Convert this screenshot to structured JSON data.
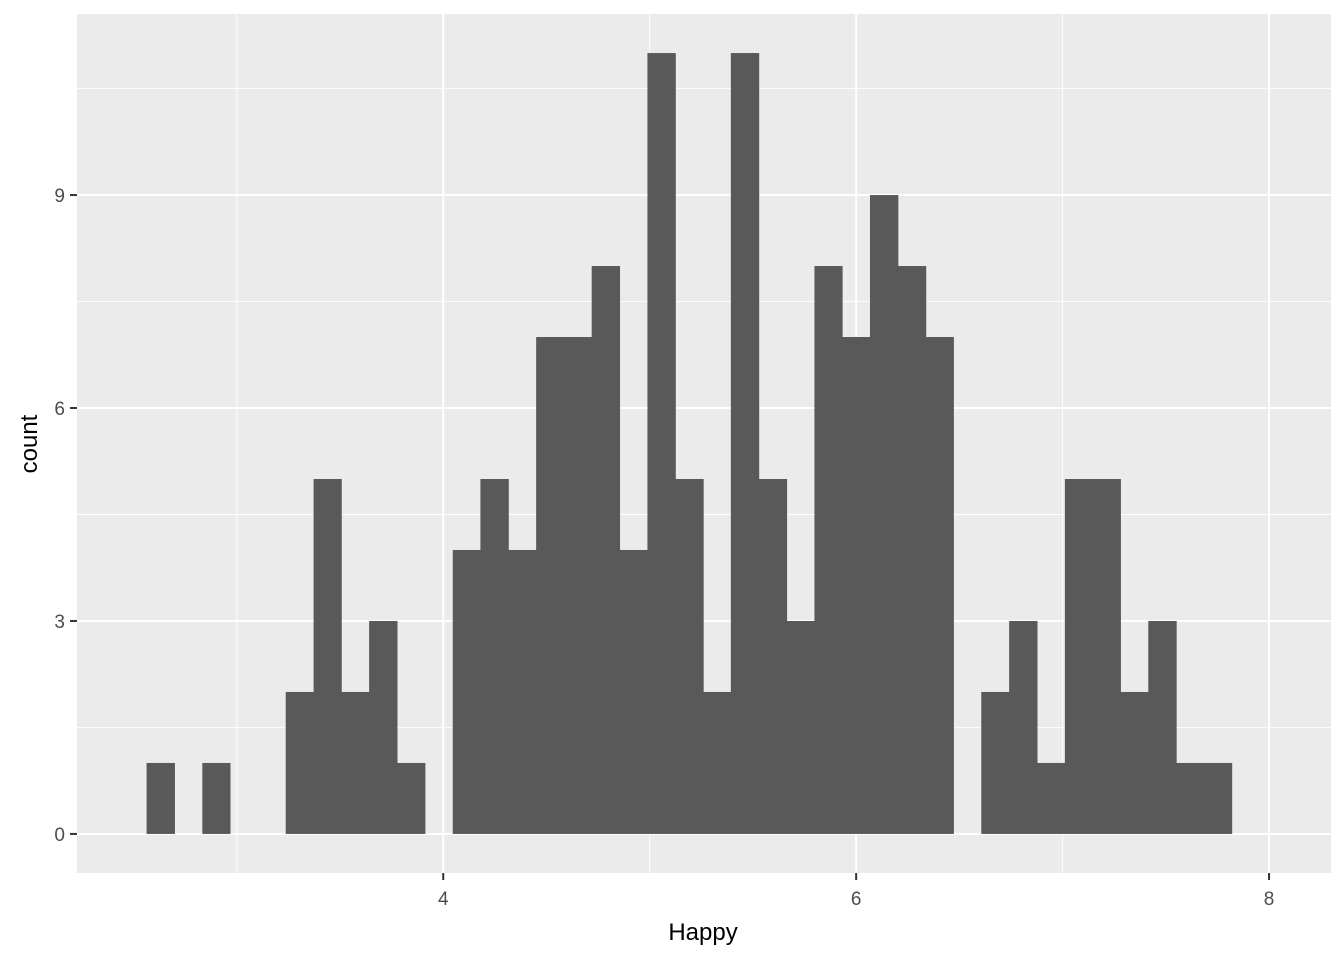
{
  "chart_data": {
    "type": "bar",
    "subtype": "histogram",
    "xlabel": "Happy",
    "ylabel": "count",
    "xlim": [
      2.226,
      8.3
    ],
    "ylim": [
      -0.55,
      11.55
    ],
    "x_ticks": [
      4,
      6,
      8
    ],
    "y_ticks": [
      0,
      3,
      6,
      9
    ],
    "grid": true,
    "legend": "none",
    "bin_width": 0.1348,
    "bins": [
      {
        "x0": 2.563,
        "x1": 2.698,
        "count": 1
      },
      {
        "x0": 2.698,
        "x1": 2.833,
        "count": 0
      },
      {
        "x0": 2.833,
        "x1": 2.967,
        "count": 1
      },
      {
        "x0": 2.967,
        "x1": 3.102,
        "count": 0
      },
      {
        "x0": 3.102,
        "x1": 3.237,
        "count": 0
      },
      {
        "x0": 3.237,
        "x1": 3.372,
        "count": 2
      },
      {
        "x0": 3.372,
        "x1": 3.506,
        "count": 5
      },
      {
        "x0": 3.506,
        "x1": 3.641,
        "count": 2
      },
      {
        "x0": 3.641,
        "x1": 3.776,
        "count": 3
      },
      {
        "x0": 3.776,
        "x1": 3.911,
        "count": 1
      },
      {
        "x0": 3.911,
        "x1": 4.046,
        "count": 0
      },
      {
        "x0": 4.046,
        "x1": 4.18,
        "count": 4
      },
      {
        "x0": 4.18,
        "x1": 4.315,
        "count": 5
      },
      {
        "x0": 4.315,
        "x1": 4.45,
        "count": 4
      },
      {
        "x0": 4.45,
        "x1": 4.585,
        "count": 7
      },
      {
        "x0": 4.585,
        "x1": 4.719,
        "count": 7
      },
      {
        "x0": 4.719,
        "x1": 4.854,
        "count": 8
      },
      {
        "x0": 4.854,
        "x1": 4.989,
        "count": 4
      },
      {
        "x0": 4.989,
        "x1": 5.124,
        "count": 11
      },
      {
        "x0": 5.124,
        "x1": 5.259,
        "count": 5
      },
      {
        "x0": 5.259,
        "x1": 5.393,
        "count": 2
      },
      {
        "x0": 5.393,
        "x1": 5.528,
        "count": 11
      },
      {
        "x0": 5.528,
        "x1": 5.663,
        "count": 5
      },
      {
        "x0": 5.663,
        "x1": 5.798,
        "count": 3
      },
      {
        "x0": 5.798,
        "x1": 5.932,
        "count": 8
      },
      {
        "x0": 5.932,
        "x1": 6.067,
        "count": 7
      },
      {
        "x0": 6.067,
        "x1": 6.202,
        "count": 9
      },
      {
        "x0": 6.202,
        "x1": 6.337,
        "count": 8
      },
      {
        "x0": 6.337,
        "x1": 6.471,
        "count": 7
      },
      {
        "x0": 6.471,
        "x1": 6.606,
        "count": 0
      },
      {
        "x0": 6.606,
        "x1": 6.741,
        "count": 2
      },
      {
        "x0": 6.741,
        "x1": 6.876,
        "count": 3
      },
      {
        "x0": 6.876,
        "x1": 7.011,
        "count": 1
      },
      {
        "x0": 7.011,
        "x1": 7.145,
        "count": 5
      },
      {
        "x0": 7.145,
        "x1": 7.28,
        "count": 5
      },
      {
        "x0": 7.28,
        "x1": 7.415,
        "count": 2
      },
      {
        "x0": 7.415,
        "x1": 7.55,
        "count": 3
      },
      {
        "x0": 7.55,
        "x1": 7.684,
        "count": 1
      },
      {
        "x0": 7.684,
        "x1": 7.819,
        "count": 1
      }
    ],
    "colors": {
      "panel_background": "#EBEBEB",
      "grid_major": "#FFFFFF",
      "bar_fill": "#595959",
      "tick_label": "#4D4D4D",
      "axis_title": "#000000",
      "tick_mark": "#333333"
    }
  }
}
